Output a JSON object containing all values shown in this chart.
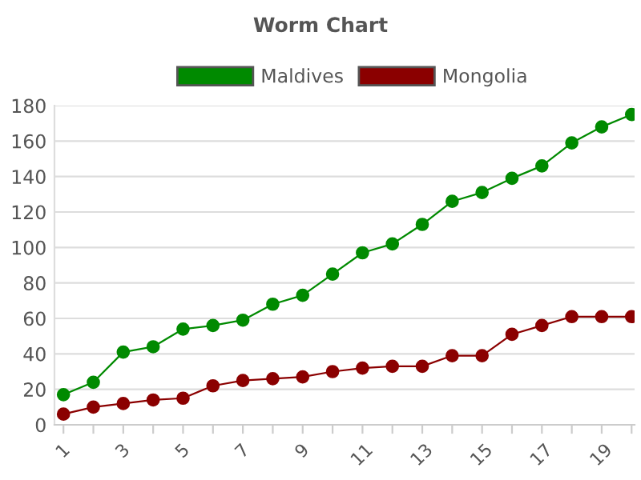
{
  "chart_data": {
    "type": "line",
    "title": "Worm Chart",
    "categories": [
      "1",
      null,
      "3",
      null,
      "5",
      null,
      "7",
      null,
      "9",
      null,
      "11",
      null,
      "13",
      null,
      "15",
      null,
      "17",
      null,
      "19",
      null
    ],
    "series": [
      {
        "name": "Maldives",
        "color": "#008a00",
        "values": [
          17,
          24,
          41,
          44,
          54,
          56,
          59,
          68,
          73,
          85,
          97,
          102,
          113,
          126,
          131,
          139,
          146,
          159,
          168,
          175
        ]
      },
      {
        "name": "Mongolia",
        "color": "#8b0000",
        "values": [
          6,
          10,
          12,
          14,
          15,
          22,
          25,
          26,
          27,
          30,
          32,
          33,
          33,
          39,
          39,
          51,
          56,
          61,
          61,
          61
        ]
      }
    ],
    "ylim": [
      0,
      180
    ],
    "yticks": [
      0,
      20,
      40,
      60,
      80,
      100,
      120,
      140,
      160,
      180
    ],
    "grid": "y",
    "legend": "top",
    "marker": "circle",
    "line_style": "solid"
  }
}
